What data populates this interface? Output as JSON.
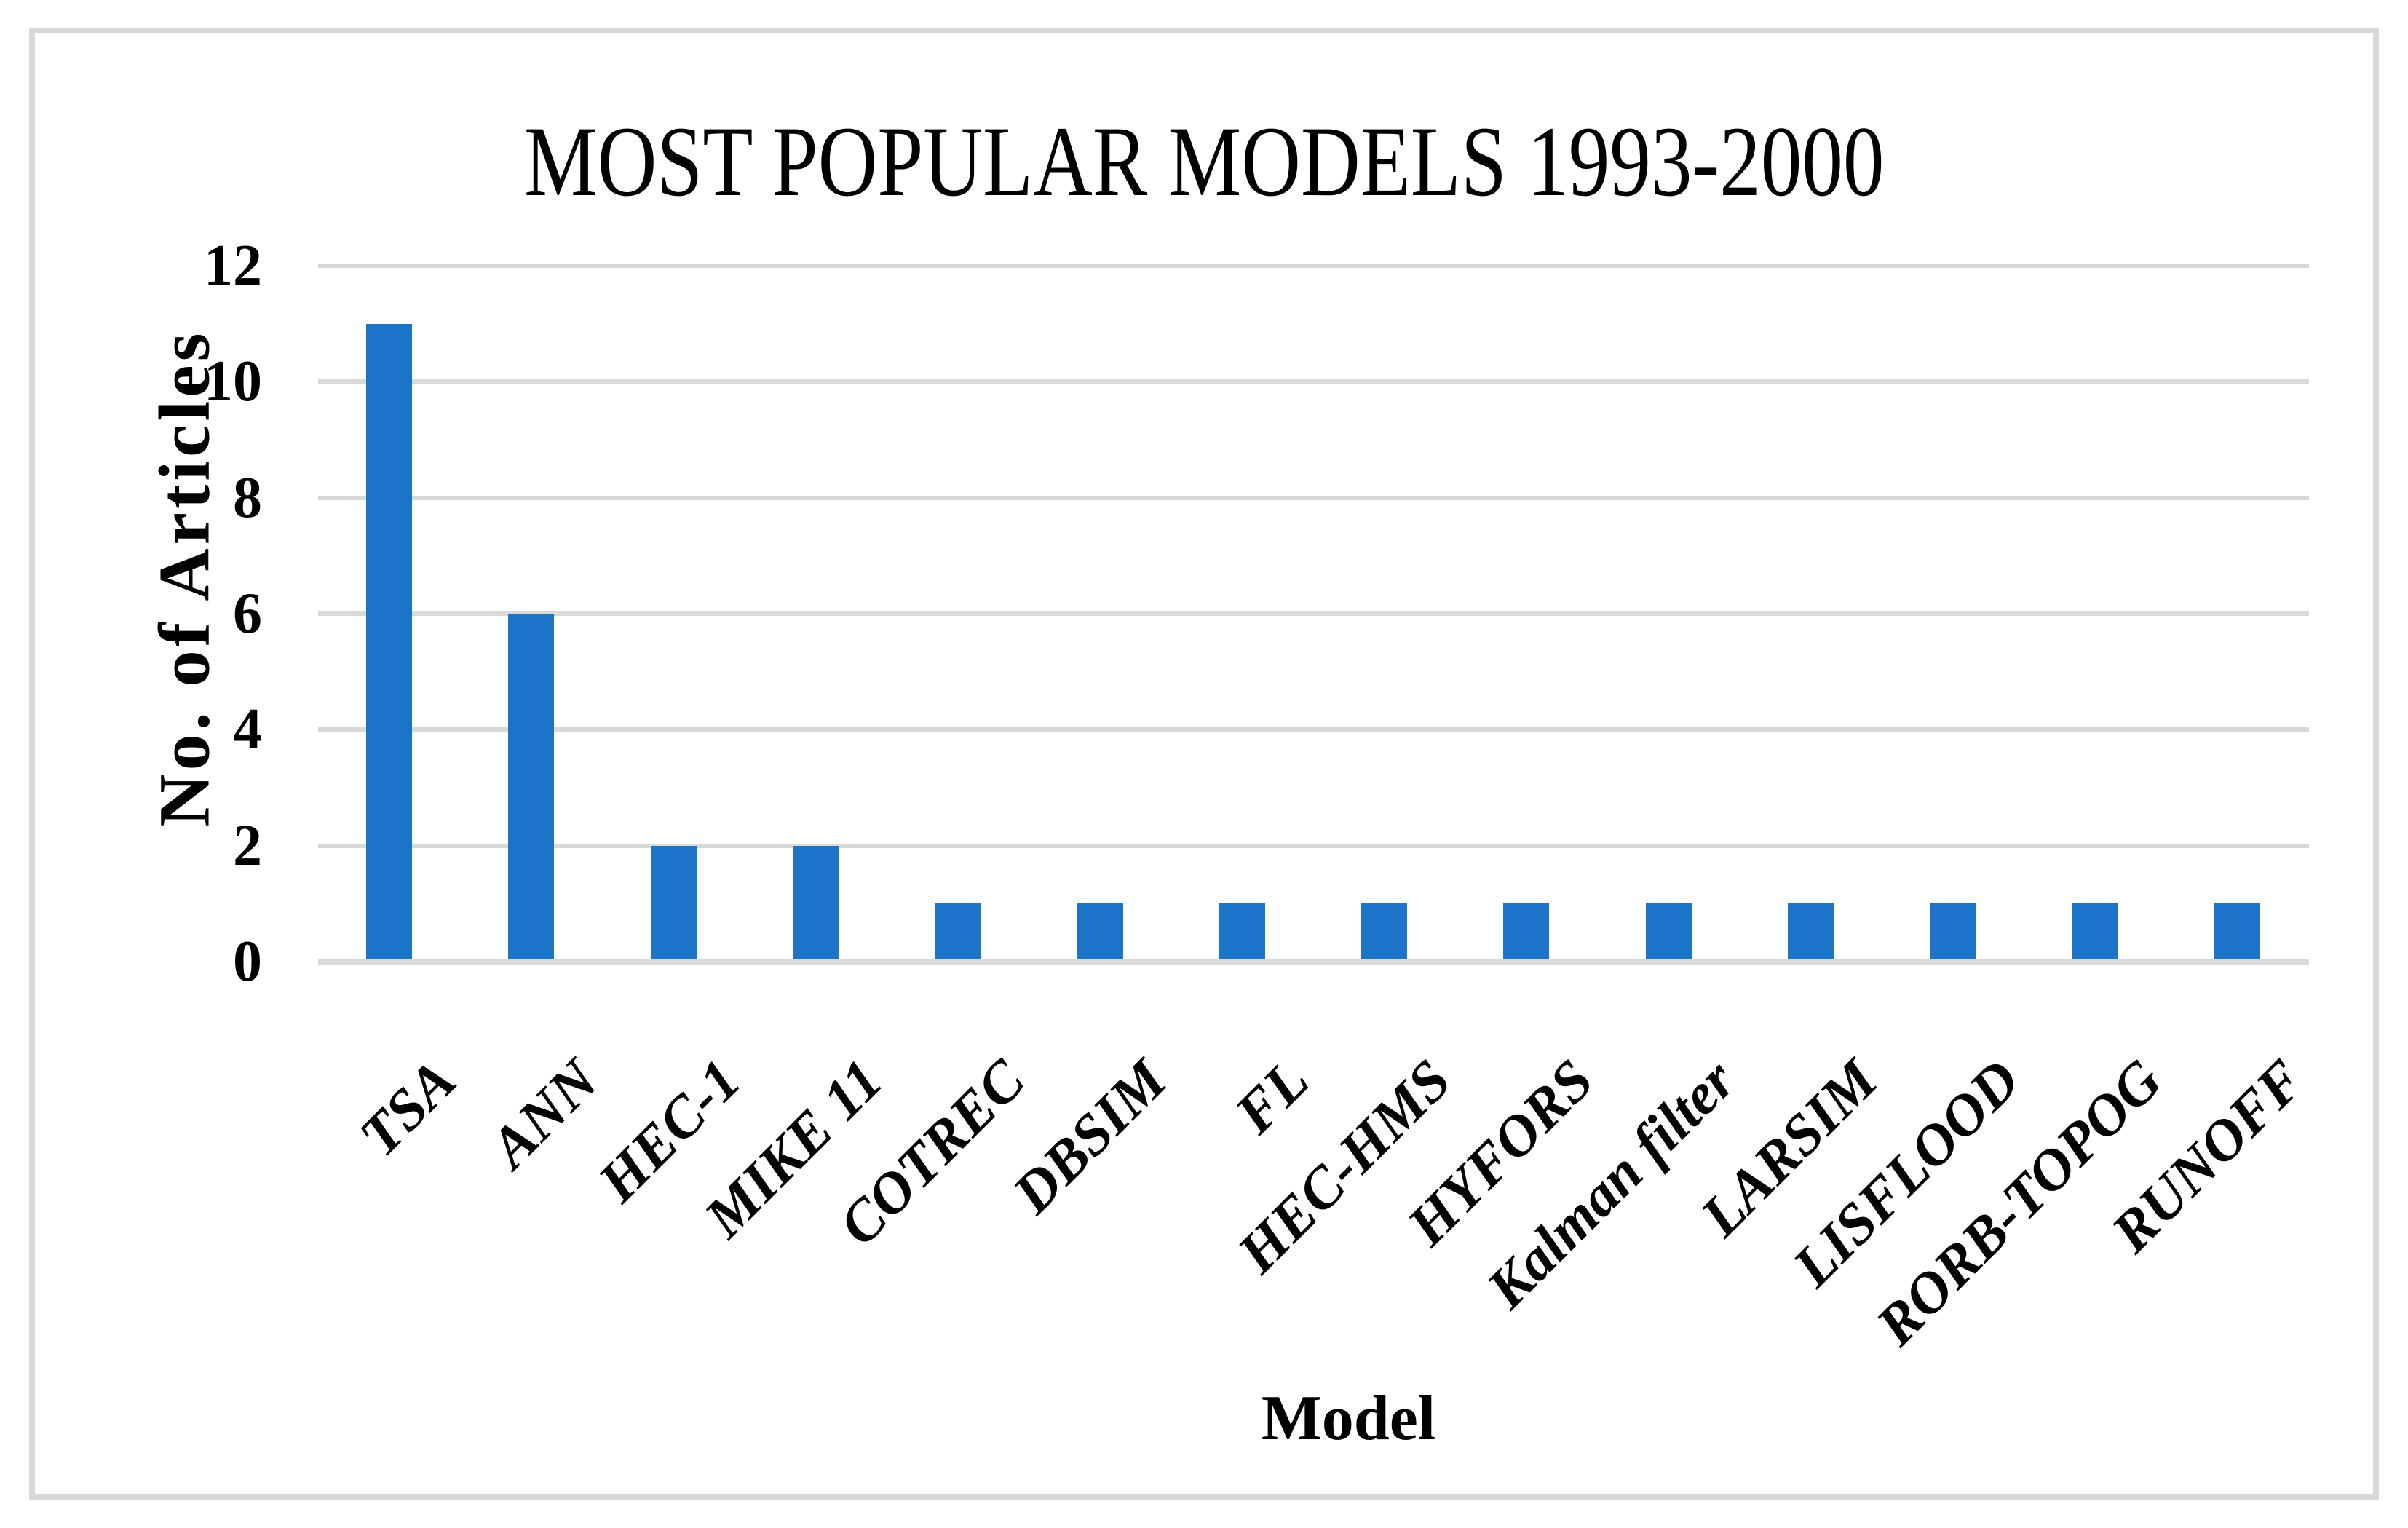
{
  "figure": {
    "background": "#ffffff",
    "border_color": "#d9d9d9"
  },
  "chart_data": {
    "type": "bar",
    "title": "MOST POPULAR MODELS 1993-2000",
    "xlabel": "Model",
    "ylabel": "No. of Articles",
    "categories": [
      "TSA",
      "ANN",
      "HEC-1",
      "MIKE 11",
      "COTREC",
      "DBSIM",
      "FL",
      "HEC-HMS",
      "HYFORS",
      "Kalman filter",
      "LARSIM",
      "LISFLOOD",
      "RORB-TOPOG",
      "RUNOFF"
    ],
    "values": [
      11,
      6,
      2,
      2,
      1,
      1,
      1,
      1,
      1,
      1,
      1,
      1,
      1,
      1
    ],
    "ylim": [
      0,
      12
    ],
    "yticks": [
      0,
      2,
      4,
      6,
      8,
      10,
      12
    ],
    "grid": "horizontal",
    "legend_position": "none",
    "bar_color": "#1b74c8",
    "gridline_color": "#d9d9d9",
    "text_color": "#000000"
  }
}
